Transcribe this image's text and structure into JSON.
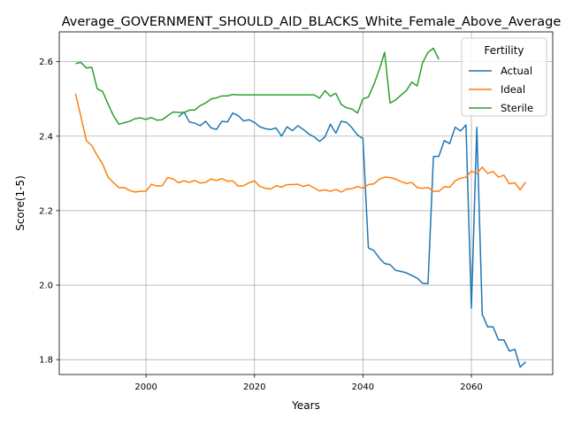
{
  "chart_data": {
    "type": "line",
    "title": "Average_GOVERNMENT_SHOULD_AID_BLACKS_White_Female_Above_Average",
    "xlabel": "Years",
    "ylabel": "Score(1-5)",
    "xlim": [
      1984,
      2075
    ],
    "ylim": [
      1.76,
      2.68
    ],
    "xticks": [
      2000,
      2020,
      2040,
      2060
    ],
    "yticks": [
      1.8,
      2.0,
      2.2,
      2.4,
      2.6
    ],
    "grid": true,
    "legend": {
      "title": "Fertility",
      "position": "top-right"
    },
    "series": [
      {
        "name": "Actual",
        "color": "#1f77b4",
        "points": [
          [
            2006,
            2.452
          ],
          [
            2007,
            2.465
          ],
          [
            2008,
            2.438
          ],
          [
            2009,
            2.435
          ],
          [
            2010,
            2.428
          ],
          [
            2011,
            2.44
          ],
          [
            2012,
            2.422
          ],
          [
            2013,
            2.418
          ],
          [
            2014,
            2.44
          ],
          [
            2015,
            2.438
          ],
          [
            2016,
            2.462
          ],
          [
            2017,
            2.455
          ],
          [
            2018,
            2.441
          ],
          [
            2019,
            2.444
          ],
          [
            2020,
            2.437
          ],
          [
            2021,
            2.425
          ],
          [
            2022,
            2.42
          ],
          [
            2023,
            2.418
          ],
          [
            2024,
            2.422
          ],
          [
            2025,
            2.4
          ],
          [
            2026,
            2.425
          ],
          [
            2027,
            2.415
          ],
          [
            2028,
            2.428
          ],
          [
            2029,
            2.418
          ],
          [
            2030,
            2.406
          ],
          [
            2031,
            2.398
          ],
          [
            2032,
            2.386
          ],
          [
            2033,
            2.398
          ],
          [
            2034,
            2.432
          ],
          [
            2035,
            2.408
          ],
          [
            2036,
            2.44
          ],
          [
            2037,
            2.437
          ],
          [
            2038,
            2.422
          ],
          [
            2039,
            2.403
          ],
          [
            2040,
            2.394
          ],
          [
            2041,
            2.1
          ],
          [
            2042,
            2.093
          ],
          [
            2043,
            2.073
          ],
          [
            2044,
            2.058
          ],
          [
            2045,
            2.055
          ],
          [
            2046,
            2.04
          ],
          [
            2047,
            2.037
          ],
          [
            2048,
            2.033
          ],
          [
            2049,
            2.026
          ],
          [
            2050,
            2.019
          ],
          [
            2051,
            2.005
          ],
          [
            2052,
            2.004
          ],
          [
            2053,
            2.345
          ],
          [
            2054,
            2.346
          ],
          [
            2055,
            2.388
          ],
          [
            2056,
            2.38
          ],
          [
            2057,
            2.424
          ],
          [
            2058,
            2.414
          ],
          [
            2059,
            2.43
          ],
          [
            2060,
            1.938
          ],
          [
            2061,
            2.424
          ],
          [
            2062,
            1.922
          ],
          [
            2063,
            1.888
          ],
          [
            2064,
            1.888
          ],
          [
            2065,
            1.853
          ],
          [
            2066,
            1.853
          ],
          [
            2067,
            1.823
          ],
          [
            2068,
            1.828
          ],
          [
            2069,
            1.78
          ],
          [
            2070,
            1.794
          ]
        ]
      },
      {
        "name": "Ideal",
        "color": "#ff7f0e",
        "points": [
          [
            1987,
            2.514
          ],
          [
            1988,
            2.452
          ],
          [
            1989,
            2.388
          ],
          [
            1990,
            2.375
          ],
          [
            1991,
            2.348
          ],
          [
            1992,
            2.325
          ],
          [
            1993,
            2.29
          ],
          [
            1994,
            2.275
          ],
          [
            1995,
            2.262
          ],
          [
            1996,
            2.262
          ],
          [
            1997,
            2.254
          ],
          [
            1998,
            2.25
          ],
          [
            1999,
            2.252
          ],
          [
            2000,
            2.252
          ],
          [
            2001,
            2.271
          ],
          [
            2002,
            2.266
          ],
          [
            2003,
            2.267
          ],
          [
            2004,
            2.289
          ],
          [
            2005,
            2.285
          ],
          [
            2006,
            2.275
          ],
          [
            2007,
            2.28
          ],
          [
            2008,
            2.276
          ],
          [
            2009,
            2.281
          ],
          [
            2010,
            2.274
          ],
          [
            2011,
            2.276
          ],
          [
            2012,
            2.285
          ],
          [
            2013,
            2.281
          ],
          [
            2014,
            2.286
          ],
          [
            2015,
            2.279
          ],
          [
            2016,
            2.28
          ],
          [
            2017,
            2.266
          ],
          [
            2018,
            2.267
          ],
          [
            2019,
            2.275
          ],
          [
            2020,
            2.28
          ],
          [
            2021,
            2.265
          ],
          [
            2022,
            2.26
          ],
          [
            2023,
            2.258
          ],
          [
            2024,
            2.267
          ],
          [
            2025,
            2.263
          ],
          [
            2026,
            2.27
          ],
          [
            2027,
            2.27
          ],
          [
            2028,
            2.271
          ],
          [
            2029,
            2.265
          ],
          [
            2030,
            2.269
          ],
          [
            2031,
            2.261
          ],
          [
            2032,
            2.253
          ],
          [
            2033,
            2.256
          ],
          [
            2034,
            2.252
          ],
          [
            2035,
            2.257
          ],
          [
            2036,
            2.25
          ],
          [
            2037,
            2.258
          ],
          [
            2038,
            2.259
          ],
          [
            2039,
            2.265
          ],
          [
            2040,
            2.26
          ],
          [
            2041,
            2.27
          ],
          [
            2042,
            2.272
          ],
          [
            2043,
            2.284
          ],
          [
            2044,
            2.29
          ],
          [
            2045,
            2.289
          ],
          [
            2046,
            2.285
          ],
          [
            2047,
            2.278
          ],
          [
            2048,
            2.273
          ],
          [
            2049,
            2.276
          ],
          [
            2050,
            2.262
          ],
          [
            2051,
            2.26
          ],
          [
            2052,
            2.262
          ],
          [
            2053,
            2.252
          ],
          [
            2054,
            2.252
          ],
          [
            2055,
            2.264
          ],
          [
            2056,
            2.263
          ],
          [
            2057,
            2.28
          ],
          [
            2058,
            2.287
          ],
          [
            2059,
            2.29
          ],
          [
            2060,
            2.306
          ],
          [
            2061,
            2.3
          ],
          [
            2062,
            2.317
          ],
          [
            2063,
            2.3
          ],
          [
            2064,
            2.305
          ],
          [
            2065,
            2.29
          ],
          [
            2066,
            2.295
          ],
          [
            2067,
            2.272
          ],
          [
            2068,
            2.275
          ],
          [
            2069,
            2.256
          ],
          [
            2070,
            2.277
          ]
        ]
      },
      {
        "name": "Sterile",
        "color": "#2ca02c",
        "points": [
          [
            1987,
            2.595
          ],
          [
            1988,
            2.598
          ],
          [
            1989,
            2.583
          ],
          [
            1990,
            2.585
          ],
          [
            1991,
            2.527
          ],
          [
            1992,
            2.52
          ],
          [
            1993,
            2.486
          ],
          [
            1994,
            2.455
          ],
          [
            1995,
            2.432
          ],
          [
            1996,
            2.436
          ],
          [
            1997,
            2.44
          ],
          [
            1998,
            2.447
          ],
          [
            1999,
            2.449
          ],
          [
            2000,
            2.445
          ],
          [
            2001,
            2.45
          ],
          [
            2002,
            2.443
          ],
          [
            2003,
            2.444
          ],
          [
            2004,
            2.455
          ],
          [
            2005,
            2.465
          ],
          [
            2006,
            2.464
          ],
          [
            2007,
            2.463
          ],
          [
            2008,
            2.47
          ],
          [
            2009,
            2.47
          ],
          [
            2010,
            2.482
          ],
          [
            2011,
            2.489
          ],
          [
            2012,
            2.5
          ],
          [
            2013,
            2.503
          ],
          [
            2014,
            2.508
          ],
          [
            2015,
            2.508
          ],
          [
            2016,
            2.512
          ],
          [
            2017,
            2.511
          ],
          [
            2018,
            2.511
          ],
          [
            2019,
            2.511
          ],
          [
            2020,
            2.511
          ],
          [
            2021,
            2.511
          ],
          [
            2022,
            2.511
          ],
          [
            2023,
            2.511
          ],
          [
            2024,
            2.511
          ],
          [
            2025,
            2.511
          ],
          [
            2026,
            2.511
          ],
          [
            2027,
            2.511
          ],
          [
            2028,
            2.511
          ],
          [
            2029,
            2.511
          ],
          [
            2030,
            2.511
          ],
          [
            2031,
            2.511
          ],
          [
            2032,
            2.502
          ],
          [
            2033,
            2.522
          ],
          [
            2034,
            2.507
          ],
          [
            2035,
            2.515
          ],
          [
            2036,
            2.485
          ],
          [
            2037,
            2.476
          ],
          [
            2038,
            2.473
          ],
          [
            2039,
            2.462
          ],
          [
            2040,
            2.5
          ],
          [
            2041,
            2.505
          ],
          [
            2042,
            2.538
          ],
          [
            2043,
            2.578
          ],
          [
            2044,
            2.625
          ],
          [
            2045,
            2.489
          ],
          [
            2046,
            2.497
          ],
          [
            2047,
            2.51
          ],
          [
            2048,
            2.522
          ],
          [
            2049,
            2.545
          ],
          [
            2050,
            2.535
          ],
          [
            2051,
            2.597
          ],
          [
            2052,
            2.625
          ],
          [
            2053,
            2.636
          ],
          [
            2054,
            2.606
          ]
        ]
      }
    ]
  }
}
